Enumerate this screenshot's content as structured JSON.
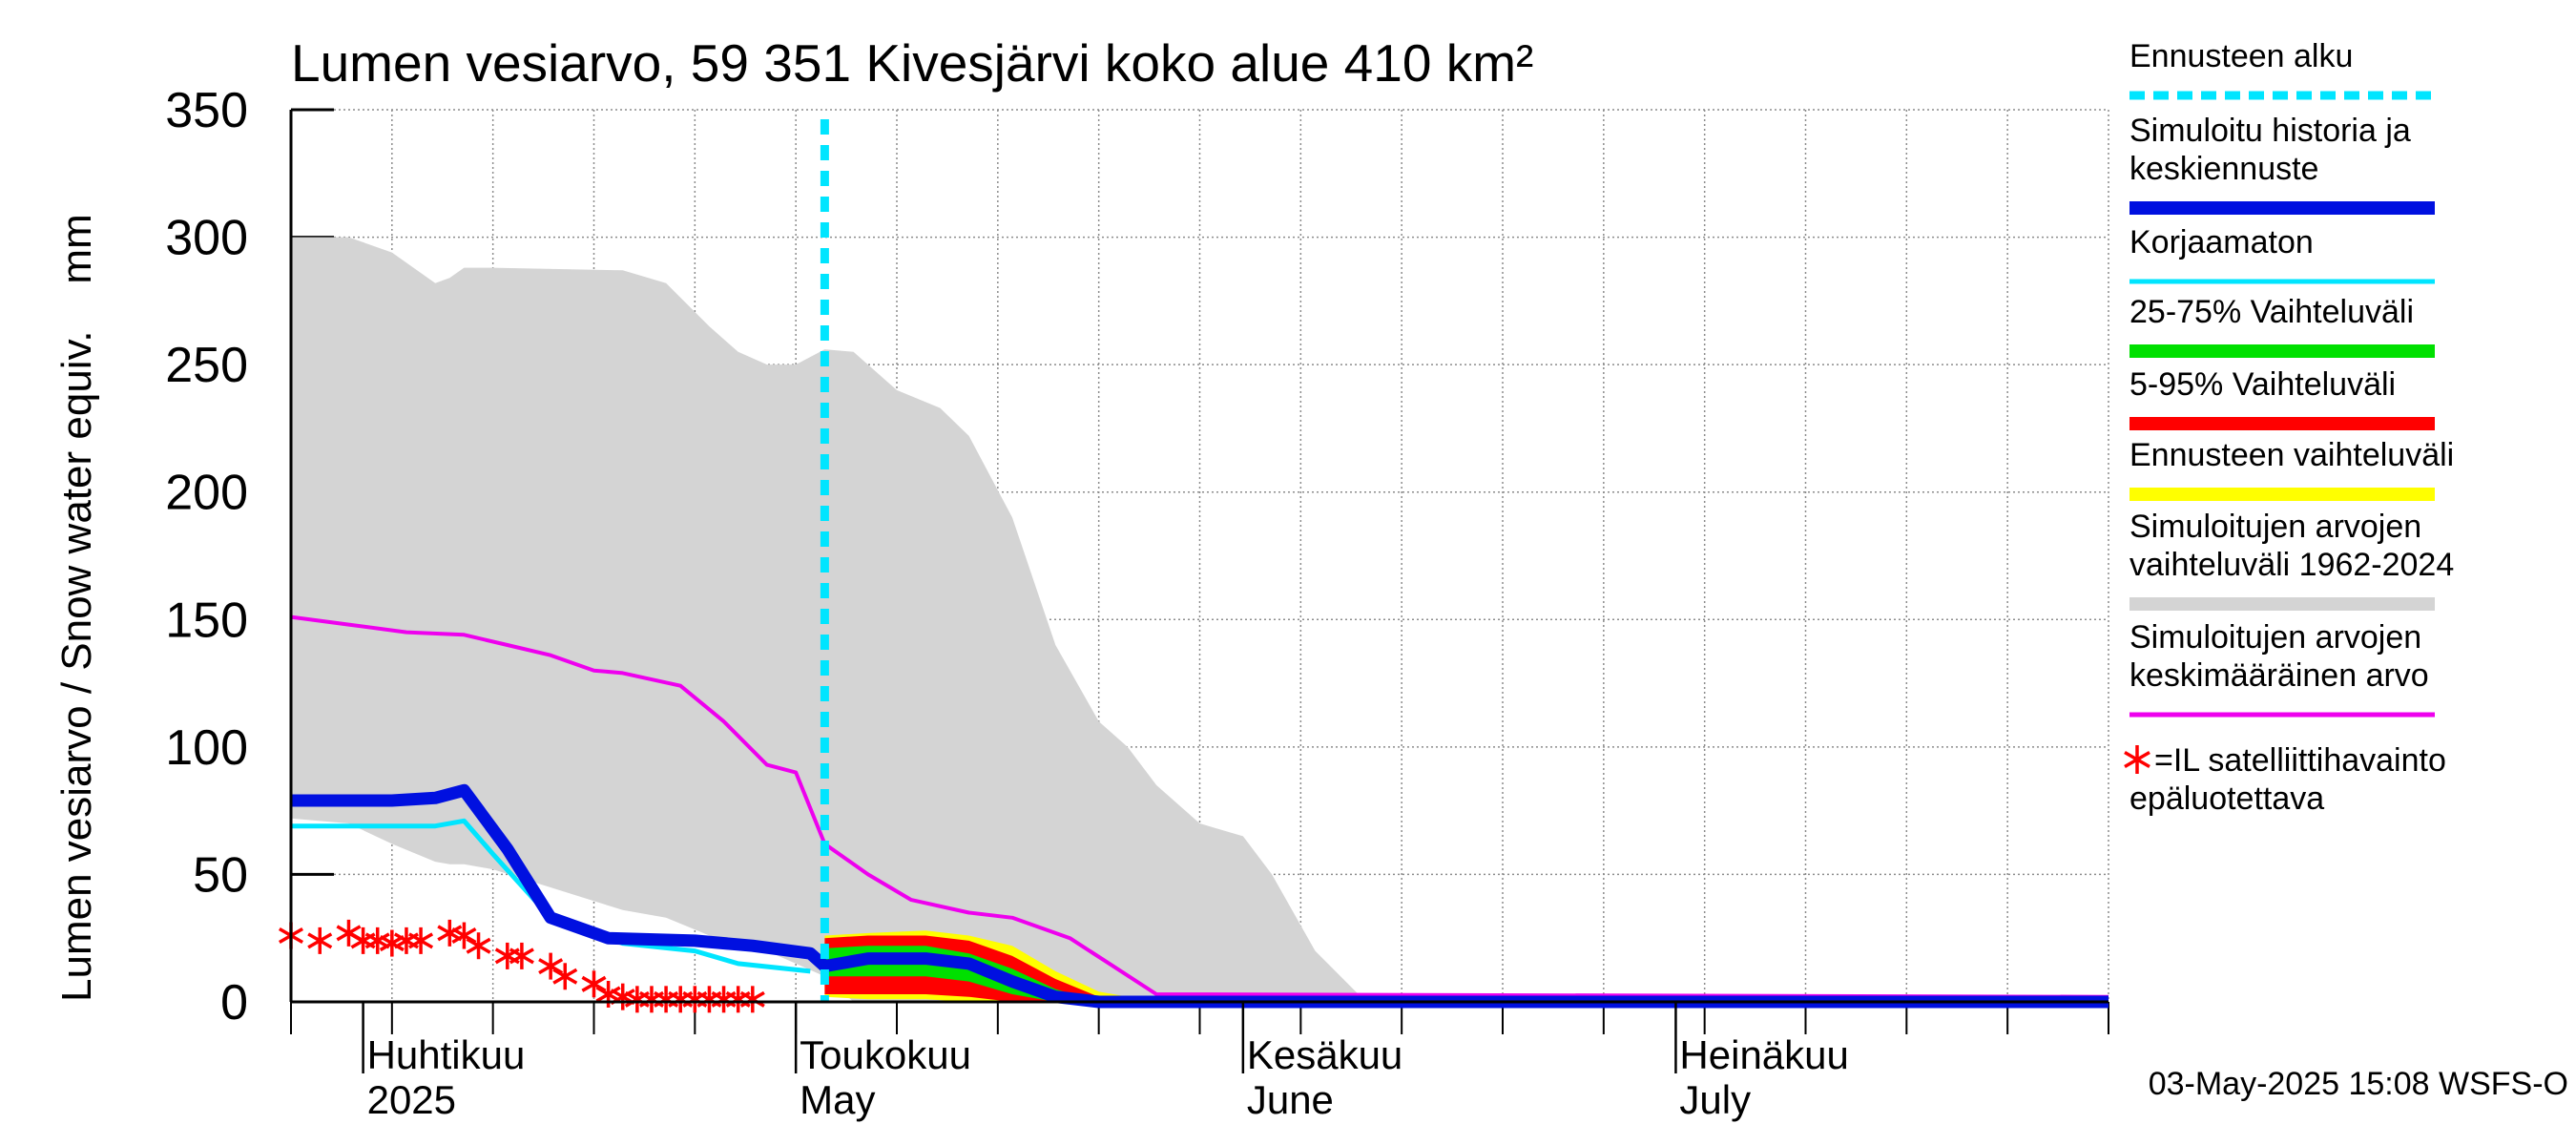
{
  "chart_data": {
    "type": "area",
    "title": "Lumen vesiarvo, 59 351 Kivesjärvi koko alue 410 km²",
    "ylabel": "Lumen vesiarvo / Snow water equiv.    mm",
    "ylim": [
      0,
      350
    ],
    "yticks": [
      "0",
      "50",
      "100",
      "150",
      "200",
      "250",
      "300",
      "350"
    ],
    "xlim": [
      "2025-03-27",
      "2025-07-31"
    ],
    "grid": true,
    "month_labels": [
      {
        "date": "2025-04-01",
        "fi": "Huhtikuu",
        "en": "2025"
      },
      {
        "date": "2025-05-01",
        "fi": "Toukokuu",
        "en": "May"
      },
      {
        "date": "2025-06-01",
        "fi": "Kesäkuu",
        "en": "June"
      },
      {
        "date": "2025-07-01",
        "fi": "Heinäkuu",
        "en": "July"
      }
    ],
    "forecast_start": "2025-05-03",
    "footer": "03-May-2025 15:08 WSFS-O",
    "legend_position": "right",
    "legend": [
      {
        "key": "forecast_start",
        "label": "Ennusteen alku",
        "color": "#00e5ff"
      },
      {
        "key": "simulated",
        "label": "Simuloitu historia ja keskiennuste",
        "color": "#0010e0"
      },
      {
        "key": "uncorrected",
        "label": "Korjaamaton",
        "color": "#00e5ff"
      },
      {
        "key": "p25_75",
        "label": "25-75% Vaihteluväli",
        "color": "#00e000"
      },
      {
        "key": "p5_95",
        "label": "5-95% Vaihteluväli",
        "color": "#ff0000"
      },
      {
        "key": "forecast_range",
        "label": "Ennusteen vaihteluväli",
        "color": "#ffff00"
      },
      {
        "key": "hist_range",
        "label": "Simuloitujen arvojen vaihteluväli 1962-2024",
        "color": "#d4d4d4"
      },
      {
        "key": "hist_mean",
        "label": "Simuloitujen arvojen keskimääräinen arvo",
        "color": "#ee00ee"
      },
      {
        "key": "satellite",
        "label": "=IL satelliittihavainto epäluotettava",
        "color": "#ff0000"
      }
    ],
    "hist_range": {
      "x": [
        "2025-03-27",
        "2025-03-31",
        "2025-04-03",
        "2025-04-06",
        "2025-04-07",
        "2025-04-08",
        "2025-04-10",
        "2025-04-19",
        "2025-04-22",
        "2025-04-25",
        "2025-04-27",
        "2025-04-29",
        "2025-05-01",
        "2025-05-03",
        "2025-05-05",
        "2025-05-08",
        "2025-05-11",
        "2025-05-13",
        "2025-05-16",
        "2025-05-19",
        "2025-05-22",
        "2025-05-24",
        "2025-05-26",
        "2025-05-29",
        "2025-06-01",
        "2025-06-03",
        "2025-06-06",
        "2025-06-09",
        "2025-06-12",
        "2025-06-14",
        "2025-06-16",
        "2025-06-20",
        "2025-07-31"
      ],
      "upper": [
        300,
        300,
        294,
        282,
        284,
        288,
        288,
        287,
        282,
        265,
        255,
        250,
        250,
        256,
        255,
        240,
        233,
        222,
        190,
        140,
        110,
        100,
        85,
        70,
        65,
        50,
        20,
        3,
        0,
        0,
        0,
        0,
        0
      ],
      "lower": [
        72,
        70,
        62,
        55,
        54,
        54,
        52,
        36,
        33,
        26,
        23,
        20,
        15,
        10,
        0,
        0,
        0,
        0,
        0,
        0,
        0,
        0,
        0,
        0,
        0,
        0,
        0,
        0,
        0,
        0,
        0,
        0,
        0
      ]
    },
    "hist_mean": {
      "x": [
        "2025-03-27",
        "2025-03-31",
        "2025-04-04",
        "2025-04-08",
        "2025-04-11",
        "2025-04-14",
        "2025-04-17",
        "2025-04-19",
        "2025-04-23",
        "2025-04-26",
        "2025-04-29",
        "2025-05-01",
        "2025-05-03",
        "2025-05-06",
        "2025-05-09",
        "2025-05-13",
        "2025-05-16",
        "2025-05-20",
        "2025-05-23",
        "2025-05-26",
        "2025-07-31"
      ],
      "values": [
        151,
        148,
        145,
        144,
        140,
        136,
        130,
        129,
        124,
        110,
        93,
        90,
        62,
        50,
        40,
        35,
        33,
        25,
        14,
        3,
        2
      ]
    },
    "simulated": {
      "x": [
        "2025-03-27",
        "2025-04-03",
        "2025-04-06",
        "2025-04-08",
        "2025-04-11",
        "2025-04-14",
        "2025-04-18",
        "2025-04-24",
        "2025-04-28",
        "2025-05-02",
        "2025-05-03",
        "2025-05-06",
        "2025-05-10",
        "2025-05-13",
        "2025-05-16",
        "2025-05-19",
        "2025-05-22",
        "2025-07-31"
      ],
      "values": [
        79,
        79,
        80,
        83,
        60,
        33,
        25,
        24,
        22,
        19,
        14,
        17,
        17,
        15,
        8,
        2,
        0,
        0
      ]
    },
    "uncorrected": {
      "x": [
        "2025-03-27",
        "2025-04-06",
        "2025-04-08",
        "2025-04-10",
        "2025-04-14",
        "2025-04-19",
        "2025-04-24",
        "2025-04-27",
        "2025-05-02"
      ],
      "values": [
        69,
        69,
        71,
        58,
        33,
        23,
        20,
        15,
        12
      ]
    },
    "forecast_range": {
      "x": [
        "2025-05-03",
        "2025-05-06",
        "2025-05-10",
        "2025-05-13",
        "2025-05-16",
        "2025-05-19",
        "2025-05-22",
        "2025-05-26"
      ],
      "upper": [
        26,
        27,
        28,
        26,
        22,
        12,
        4,
        0
      ],
      "lower": [
        2,
        1,
        1,
        0,
        0,
        0,
        0,
        0
      ]
    },
    "p5_95": {
      "x": [
        "2025-05-03",
        "2025-05-06",
        "2025-05-10",
        "2025-05-13",
        "2025-05-16",
        "2025-05-19",
        "2025-05-22",
        "2025-05-24"
      ],
      "upper": [
        25,
        26,
        26,
        24,
        18,
        9,
        2,
        0
      ],
      "lower": [
        3,
        3,
        3,
        2,
        0,
        0,
        0,
        0
      ]
    },
    "p25_75": {
      "x": [
        "2025-05-03",
        "2025-05-06",
        "2025-05-10",
        "2025-05-13",
        "2025-05-16",
        "2025-05-19",
        "2025-05-22"
      ],
      "upper": [
        21,
        22,
        22,
        19,
        13,
        5,
        0
      ],
      "lower": [
        10,
        10,
        10,
        8,
        3,
        0,
        0
      ]
    },
    "satellite": {
      "x": [
        "2025-03-27",
        "2025-03-29",
        "2025-03-31",
        "2025-04-01",
        "2025-04-02",
        "2025-04-03",
        "2025-04-04",
        "2025-04-05",
        "2025-04-07",
        "2025-04-08",
        "2025-04-09",
        "2025-04-11",
        "2025-04-12",
        "2025-04-14",
        "2025-04-15",
        "2025-04-17",
        "2025-04-18",
        "2025-04-19",
        "2025-04-20",
        "2025-04-21",
        "2025-04-22",
        "2025-04-23",
        "2025-04-24",
        "2025-04-25",
        "2025-04-26",
        "2025-04-27",
        "2025-04-28"
      ],
      "values": [
        26,
        24,
        27,
        24,
        24,
        23,
        24,
        24,
        27,
        26,
        22,
        18,
        18,
        14,
        10,
        7,
        3,
        2,
        1,
        1,
        1,
        1,
        1,
        1,
        1,
        1,
        1
      ]
    }
  }
}
